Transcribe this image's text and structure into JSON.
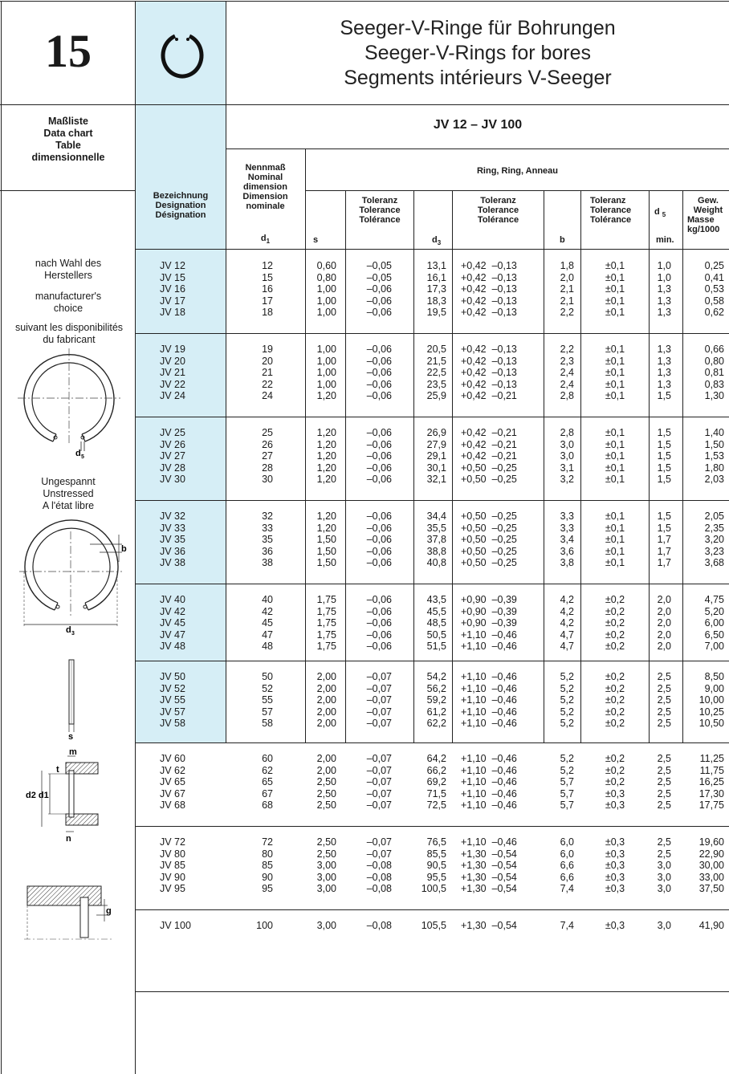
{
  "header": {
    "page_number": "15",
    "title_lines": [
      "Seeger-V-Ringe für Bohrungen",
      "Seeger-V-Rings for bores",
      "Segments intérieurs V-Seeger"
    ]
  },
  "sidebar": {
    "chart_title_lines": [
      "Maßliste",
      "Data chart",
      "Table",
      "dimensionnelle"
    ],
    "note_de_lines": [
      "nach Wahl des",
      "Herstellers"
    ],
    "note_en_lines": [
      "manufacturer's",
      "choice"
    ],
    "note_fr_lines": [
      "suivant les disponibilités",
      "du fabricant"
    ],
    "state_lines": [
      "Ungespannt",
      "Unstressed",
      "A l'état libre"
    ],
    "dim_labels": {
      "d5": "d",
      "d5_sub": "5",
      "b": "b",
      "d3": "d",
      "d3_sub": "3",
      "s": "s",
      "m": "m",
      "t": "t",
      "d2d1": "d2 d1",
      "n": "n",
      "g": "g"
    }
  },
  "table": {
    "range_title": "JV 12 – JV 100",
    "headers": {
      "designation": [
        "Bezeichnung",
        "Designation",
        "Désignation"
      ],
      "nominal": [
        "Nennmaß",
        "Nominal",
        "dimension",
        "Dimension",
        "nominale"
      ],
      "d1": "d",
      "d1_sub": "1",
      "ring_group": "Ring, Ring, Anneau",
      "s": "s",
      "tol_s": [
        "Toleranz",
        "Tolerance",
        "Tolérance"
      ],
      "d3": "d",
      "d3_sub": "3",
      "tol_d3": [
        "Toleranz",
        "Tolerance",
        "Tolérance"
      ],
      "b": "b",
      "tol_b": [
        "Toleranz",
        "Tolerance",
        "Tolérance"
      ],
      "d5": "d",
      "d5_sub": "5",
      "d5_min": "min.",
      "weight": [
        "Gew.",
        "Weight",
        "Masse",
        "kg/1000"
      ]
    },
    "columns": {
      "designation": [
        "JV 12",
        "JV 15",
        "JV 16",
        "JV 17",
        "JV 18",
        "",
        "JV 19",
        "JV 20",
        "JV 21",
        "JV 22",
        "JV 24",
        "",
        "JV 25",
        "JV 26",
        "JV 27",
        "JV 28",
        "JV 30",
        "",
        "JV 32",
        "JV 33",
        "JV 35",
        "JV 36",
        "JV 38",
        "",
        "JV 40",
        "JV 42",
        "JV 45",
        "JV 47",
        "JV 48",
        "",
        "JV 50",
        "JV 52",
        "JV 55",
        "JV 57",
        "JV 58",
        "",
        "JV 60",
        "JV 62",
        "JV 65",
        "JV 67",
        "JV 68",
        "",
        "JV 72",
        "JV 80",
        "JV 85",
        "JV 90",
        "JV 95",
        "",
        "JV 100"
      ],
      "d1": [
        "12",
        "15",
        "16",
        "17",
        "18",
        "",
        "19",
        "20",
        "21",
        "22",
        "24",
        "",
        "25",
        "26",
        "27",
        "28",
        "30",
        "",
        "32",
        "33",
        "35",
        "36",
        "38",
        "",
        "40",
        "42",
        "45",
        "47",
        "48",
        "",
        "50",
        "52",
        "55",
        "57",
        "58",
        "",
        "60",
        "62",
        "65",
        "67",
        "68",
        "",
        "72",
        "80",
        "85",
        "90",
        "95",
        "",
        "100"
      ],
      "s": [
        "0,60",
        "0,80",
        "1,00",
        "1,00",
        "1,00",
        "",
        "1,00",
        "1,00",
        "1,00",
        "1,00",
        "1,20",
        "",
        "1,20",
        "1,20",
        "1,20",
        "1,20",
        "1,20",
        "",
        "1,20",
        "1,20",
        "1,50",
        "1,50",
        "1,50",
        "",
        "1,75",
        "1,75",
        "1,75",
        "1,75",
        "1,75",
        "",
        "2,00",
        "2,00",
        "2,00",
        "2,00",
        "2,00",
        "",
        "2,00",
        "2,00",
        "2,50",
        "2,50",
        "2,50",
        "",
        "2,50",
        "2,50",
        "3,00",
        "3,00",
        "3,00",
        "",
        "3,00"
      ],
      "tol_s": [
        "–0,05",
        "–0,05",
        "–0,06",
        "–0,06",
        "–0,06",
        "",
        "–0,06",
        "–0,06",
        "–0,06",
        "–0,06",
        "–0,06",
        "",
        "–0,06",
        "–0,06",
        "–0,06",
        "–0,06",
        "–0,06",
        "",
        "–0,06",
        "–0,06",
        "–0,06",
        "–0,06",
        "–0,06",
        "",
        "–0,06",
        "–0,06",
        "–0,06",
        "–0,06",
        "–0,06",
        "",
        "–0,07",
        "–0,07",
        "–0,07",
        "–0,07",
        "–0,07",
        "",
        "–0,07",
        "–0,07",
        "–0,07",
        "–0,07",
        "–0,07",
        "",
        "–0,07",
        "–0,07",
        "–0,08",
        "–0,08",
        "–0,08",
        "",
        "–0,08"
      ],
      "d3": [
        "13,1",
        "16,1",
        "17,3",
        "18,3",
        "19,5",
        "",
        "20,5",
        "21,5",
        "22,5",
        "23,5",
        "25,9",
        "",
        "26,9",
        "27,9",
        "29,1",
        "30,1",
        "32,1",
        "",
        "34,4",
        "35,5",
        "37,8",
        "38,8",
        "40,8",
        "",
        "43,5",
        "45,5",
        "48,5",
        "50,5",
        "51,5",
        "",
        "54,2",
        "56,2",
        "59,2",
        "61,2",
        "62,2",
        "",
        "64,2",
        "66,2",
        "69,2",
        "71,5",
        "72,5",
        "",
        "76,5",
        "85,5",
        "90,5",
        "95,5",
        "100,5",
        "",
        "105,5"
      ],
      "tol_d3": [
        "+0,42  –0,13",
        "+0,42  –0,13",
        "+0,42  –0,13",
        "+0,42  –0,13",
        "+0,42  –0,13",
        "",
        "+0,42  –0,13",
        "+0,42  –0,13",
        "+0,42  –0,13",
        "+0,42  –0,13",
        "+0,42  –0,21",
        "",
        "+0,42  –0,21",
        "+0,42  –0,21",
        "+0,42  –0,21",
        "+0,50  –0,25",
        "+0,50  –0,25",
        "",
        "+0,50  –0,25",
        "+0,50  –0,25",
        "+0,50  –0,25",
        "+0,50  –0,25",
        "+0,50  –0,25",
        "",
        "+0,90  –0,39",
        "+0,90  –0,39",
        "+0,90  –0,39",
        "+1,10  –0,46",
        "+1,10  –0,46",
        "",
        "+1,10  –0,46",
        "+1,10  –0,46",
        "+1,10  –0,46",
        "+1,10  –0,46",
        "+1,10  –0,46",
        "",
        "+1,10  –0,46",
        "+1,10  –0,46",
        "+1,10  –0,46",
        "+1,10  –0,46",
        "+1,10  –0,46",
        "",
        "+1,10  –0,46",
        "+1,30  –0,54",
        "+1,30  –0,54",
        "+1,30  –0,54",
        "+1,30  –0,54",
        "",
        "+1,30  –0,54"
      ],
      "b": [
        "1,8",
        "2,0",
        "2,1",
        "2,1",
        "2,2",
        "",
        "2,2",
        "2,3",
        "2,4",
        "2,4",
        "2,8",
        "",
        "2,8",
        "3,0",
        "3,0",
        "3,1",
        "3,2",
        "",
        "3,3",
        "3,3",
        "3,4",
        "3,6",
        "3,8",
        "",
        "4,2",
        "4,2",
        "4,2",
        "4,7",
        "4,7",
        "",
        "5,2",
        "5,2",
        "5,2",
        "5,2",
        "5,2",
        "",
        "5,2",
        "5,2",
        "5,7",
        "5,7",
        "5,7",
        "",
        "6,0",
        "6,0",
        "6,6",
        "6,6",
        "7,4",
        "",
        "7,4"
      ],
      "tol_b": [
        "±0,1",
        "±0,1",
        "±0,1",
        "±0,1",
        "±0,1",
        "",
        "±0,1",
        "±0,1",
        "±0,1",
        "±0,1",
        "±0,1",
        "",
        "±0,1",
        "±0,1",
        "±0,1",
        "±0,1",
        "±0,1",
        "",
        "±0,1",
        "±0,1",
        "±0,1",
        "±0,1",
        "±0,1",
        "",
        "±0,2",
        "±0,2",
        "±0,2",
        "±0,2",
        "±0,2",
        "",
        "±0,2",
        "±0,2",
        "±0,2",
        "±0,2",
        "±0,2",
        "",
        "±0,2",
        "±0,2",
        "±0,2",
        "±0,3",
        "±0,3",
        "",
        "±0,3",
        "±0,3",
        "±0,3",
        "±0,3",
        "±0,3",
        "",
        "±0,3"
      ],
      "d5": [
        "1,0",
        "1,0",
        "1,3",
        "1,3",
        "1,3",
        "",
        "1,3",
        "1,3",
        "1,3",
        "1,3",
        "1,5",
        "",
        "1,5",
        "1,5",
        "1,5",
        "1,5",
        "1,5",
        "",
        "1,5",
        "1,5",
        "1,7",
        "1,7",
        "1,7",
        "",
        "2,0",
        "2,0",
        "2,0",
        "2,0",
        "2,0",
        "",
        "2,5",
        "2,5",
        "2,5",
        "2,5",
        "2,5",
        "",
        "2,5",
        "2,5",
        "2,5",
        "2,5",
        "2,5",
        "",
        "2,5",
        "2,5",
        "3,0",
        "3,0",
        "3,0",
        "",
        "3,0"
      ],
      "weight": [
        "0,25",
        "0,41",
        "0,53",
        "0,58",
        "0,62",
        "",
        "0,66",
        "0,80",
        "0,81",
        "0,83",
        "1,30",
        "",
        "1,40",
        "1,50",
        "1,53",
        "1,80",
        "2,03",
        "",
        "2,05",
        "2,35",
        "3,20",
        "3,23",
        "3,68",
        "",
        "4,75",
        "5,20",
        "6,00",
        "6,50",
        "7,00",
        "",
        "8,50",
        "9,00",
        "10,00",
        "10,25",
        "10,50",
        "",
        "11,25",
        "11,75",
        "16,25",
        "17,30",
        "17,75",
        "",
        "19,60",
        "22,90",
        "30,00",
        "33,00",
        "37,50",
        "",
        "41,90"
      ]
    }
  }
}
